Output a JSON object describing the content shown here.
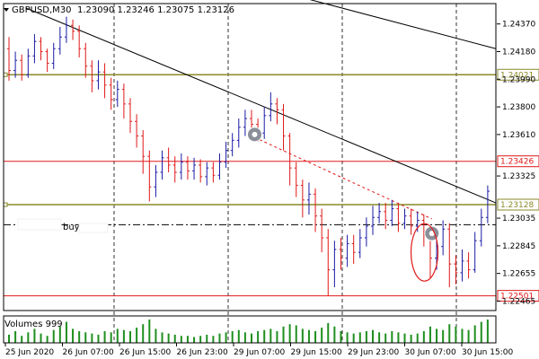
{
  "header": {
    "symbol_timeframe": "GBPUSD,M30",
    "ohlc": "1.23090 1.23246 1.23075 1.23126",
    "menu_icon": "triangle-down-icon"
  },
  "volumes_label": "Volumes 999",
  "buy_label": "buy",
  "colors": {
    "background": "#ffffff",
    "bull": "#1a1aa6",
    "bear": "#e01818",
    "red_line": "#e01818",
    "olive_line": "#8a8a2a",
    "trend_line": "#000000",
    "volume": "#1f8f1f",
    "label_red": "#e01818",
    "label_olive": "#8a8a2a"
  },
  "chart_data": {
    "type": "candlestick",
    "ylim": [
      1.224,
      1.2451
    ],
    "price_ticks": [
      "1.24370",
      "1.24180",
      "1.23990",
      "1.23800",
      "1.23610",
      "1.23325",
      "1.23035",
      "1.22845",
      "1.22655",
      "1.22465"
    ],
    "time_labels": [
      "25 Jun 2020",
      "26 Jun 07:00",
      "26 Jun 15:00",
      "26 Jun 23:00",
      "29 Jun 07:00",
      "29 Jun 15:00",
      "29 Jun 23:00",
      "30 Jun 07:00",
      "30 Jun 15:00"
    ],
    "vertical_dashed_at_labels": [
      2,
      4,
      6,
      8
    ],
    "levels": [
      {
        "price": 1.24021,
        "label": "1.24021",
        "style": "olive"
      },
      {
        "price": 1.23426,
        "label": "1.23426",
        "style": "red"
      },
      {
        "price": 1.23128,
        "label": "1.23128",
        "style": "olive"
      },
      {
        "price": 1.22501,
        "label": "1.22501",
        "style": "red"
      }
    ],
    "current_price_dashdot": 1.2299,
    "trendlines": [
      {
        "from": [
          0.045,
          1.2448
        ],
        "to": [
          1.0,
          1.2314
        ]
      },
      {
        "from": [
          0.53,
          1.2462
        ],
        "to": [
          1.0,
          1.242
        ]
      }
    ],
    "signal_dashed": {
      "from": [
        0.51,
        1.2359
      ],
      "to": [
        0.87,
        1.2303
      ]
    },
    "markers": [
      {
        "x": 0.51,
        "price": 1.2361
      },
      {
        "x": 0.87,
        "price": 1.2293
      }
    ],
    "ellipse": {
      "x": 0.855,
      "price": 1.228
    },
    "candles": [
      [
        1.242,
        1.2405,
        1.2428,
        1.2398
      ],
      [
        1.2405,
        1.2412,
        1.2418,
        1.24
      ],
      [
        1.2412,
        1.2402,
        1.2416,
        1.2398
      ],
      [
        1.2402,
        1.2415,
        1.242,
        1.24
      ],
      [
        1.2415,
        1.2425,
        1.243,
        1.241
      ],
      [
        1.2425,
        1.2418,
        1.2428,
        1.2412
      ],
      [
        1.2418,
        1.241,
        1.242,
        1.2404
      ],
      [
        1.241,
        1.242,
        1.2424,
        1.2406
      ],
      [
        1.242,
        1.2428,
        1.2435,
        1.2416
      ],
      [
        1.2428,
        1.2436,
        1.2442,
        1.2424
      ],
      [
        1.2436,
        1.2432,
        1.244,
        1.2426
      ],
      [
        1.2432,
        1.242,
        1.2436,
        1.2414
      ],
      [
        1.242,
        1.2408,
        1.2424,
        1.24
      ],
      [
        1.2408,
        1.2398,
        1.2412,
        1.239
      ],
      [
        1.2398,
        1.2404,
        1.2412,
        1.2392
      ],
      [
        1.2404,
        1.2395,
        1.241,
        1.2386
      ],
      [
        1.2395,
        1.2385,
        1.24,
        1.2378
      ],
      [
        1.2385,
        1.2392,
        1.2398,
        1.238
      ],
      [
        1.2392,
        1.2382,
        1.2396,
        1.2372
      ],
      [
        1.2382,
        1.237,
        1.2386,
        1.2362
      ],
      [
        1.237,
        1.236,
        1.2375,
        1.2352
      ],
      [
        1.236,
        1.2346,
        1.2364,
        1.2334
      ],
      [
        1.2346,
        1.2325,
        1.235,
        1.2315
      ],
      [
        1.2325,
        1.2335,
        1.234,
        1.2318
      ],
      [
        1.2335,
        1.2345,
        1.235,
        1.233
      ],
      [
        1.2345,
        1.234,
        1.2352,
        1.2335
      ],
      [
        1.234,
        1.2335,
        1.2346,
        1.2328
      ],
      [
        1.2335,
        1.2342,
        1.2348,
        1.233
      ],
      [
        1.2342,
        1.2336,
        1.2346,
        1.233
      ],
      [
        1.2336,
        1.234,
        1.2345,
        1.233
      ],
      [
        1.234,
        1.2332,
        1.2344,
        1.2328
      ],
      [
        1.2332,
        1.2338,
        1.2342,
        1.2326
      ],
      [
        1.2338,
        1.2333,
        1.2342,
        1.2328
      ],
      [
        1.2333,
        1.2342,
        1.2348,
        1.233
      ],
      [
        1.2342,
        1.235,
        1.2356,
        1.2338
      ],
      [
        1.235,
        1.2357,
        1.2362,
        1.2346
      ],
      [
        1.2357,
        1.2366,
        1.2372,
        1.2352
      ],
      [
        1.2366,
        1.2372,
        1.2378,
        1.236
      ],
      [
        1.2372,
        1.2368,
        1.2378,
        1.2362
      ],
      [
        1.2368,
        1.2362,
        1.2372,
        1.2356
      ],
      [
        1.2362,
        1.2374,
        1.238,
        1.2358
      ],
      [
        1.2374,
        1.2382,
        1.239,
        1.237
      ],
      [
        1.2382,
        1.2378,
        1.2386,
        1.2368
      ],
      [
        1.2378,
        1.236,
        1.2382,
        1.235
      ],
      [
        1.236,
        1.2338,
        1.2362,
        1.2326
      ],
      [
        1.2338,
        1.2326,
        1.2342,
        1.2318
      ],
      [
        1.2326,
        1.2316,
        1.233,
        1.2304
      ],
      [
        1.2316,
        1.232,
        1.2328,
        1.2306
      ],
      [
        1.232,
        1.2305,
        1.2324,
        1.2294
      ],
      [
        1.2305,
        1.229,
        1.231,
        1.228
      ],
      [
        1.229,
        1.2268,
        1.2296,
        1.225
      ],
      [
        1.2268,
        1.2282,
        1.2288,
        1.2256
      ],
      [
        1.2282,
        1.2276,
        1.229,
        1.2268
      ],
      [
        1.2276,
        1.2286,
        1.2292,
        1.227
      ],
      [
        1.2286,
        1.228,
        1.2292,
        1.2272
      ],
      [
        1.228,
        1.229,
        1.2296,
        1.2276
      ],
      [
        1.229,
        1.2298,
        1.2304,
        1.2284
      ],
      [
        1.2298,
        1.2304,
        1.2312,
        1.2292
      ],
      [
        1.2304,
        1.2308,
        1.2314,
        1.23
      ],
      [
        1.2308,
        1.2302,
        1.2314,
        1.2296
      ],
      [
        1.2302,
        1.231,
        1.2316,
        1.2298
      ],
      [
        1.231,
        1.23,
        1.2314,
        1.2294
      ],
      [
        1.23,
        1.2305,
        1.231,
        1.2296
      ],
      [
        1.2305,
        1.2298,
        1.231,
        1.2292
      ],
      [
        1.2298,
        1.2302,
        1.2308,
        1.2294
      ],
      [
        1.2302,
        1.2292,
        1.2306,
        1.2284
      ],
      [
        1.2292,
        1.2276,
        1.2296,
        1.2262
      ],
      [
        1.2276,
        1.2284,
        1.2292,
        1.2268
      ],
      [
        1.2284,
        1.2296,
        1.2302,
        1.2278
      ],
      [
        1.2296,
        1.2272,
        1.23,
        1.2256
      ],
      [
        1.2272,
        1.2266,
        1.2278,
        1.2258
      ],
      [
        1.2266,
        1.2274,
        1.2282,
        1.226
      ],
      [
        1.2274,
        1.2268,
        1.228,
        1.2262
      ],
      [
        1.2268,
        1.2288,
        1.2294,
        1.2266
      ],
      [
        1.2288,
        1.2304,
        1.231,
        1.2284
      ],
      [
        1.2304,
        1.2322,
        1.2326,
        1.23
      ]
    ],
    "volumes": [
      0.35,
      0.5,
      0.3,
      0.45,
      0.6,
      0.4,
      0.3,
      0.55,
      0.7,
      0.9,
      0.6,
      0.5,
      0.45,
      0.4,
      0.35,
      0.5,
      0.45,
      0.6,
      0.55,
      0.5,
      0.65,
      0.8,
      1.0,
      0.6,
      0.45,
      0.4,
      0.35,
      0.3,
      0.3,
      0.25,
      0.3,
      0.35,
      0.3,
      0.4,
      0.45,
      0.5,
      0.55,
      0.45,
      0.4,
      0.5,
      0.55,
      0.6,
      0.5,
      0.7,
      0.8,
      0.75,
      0.6,
      0.55,
      0.5,
      0.65,
      0.85,
      0.7,
      0.5,
      0.45,
      0.4,
      0.45,
      0.5,
      0.55,
      0.45,
      0.4,
      0.5,
      0.45,
      0.4,
      0.35,
      0.4,
      0.5,
      0.7,
      0.6,
      0.55,
      0.8,
      0.7,
      0.6,
      0.55,
      0.75,
      0.9,
      1.0
    ]
  }
}
